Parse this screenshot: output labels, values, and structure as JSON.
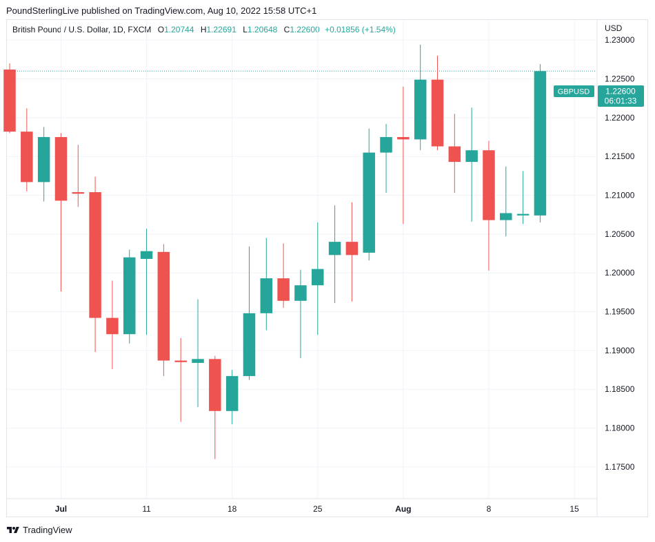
{
  "header": {
    "published_line": "PoundSterlingLive published on TradingView.com, Aug 10, 2022 15:58 UTC+1"
  },
  "legend": {
    "symbol": "British Pound / U.S. Dollar, 1D, FXCM",
    "o_label": "O",
    "o_value": "1.20744",
    "h_label": "H",
    "h_value": "1.22691",
    "l_label": "L",
    "l_value": "1.20648",
    "c_label": "C",
    "c_value": "1.22600",
    "change": "+0.01856 (+1.54%)",
    "currency": "USD"
  },
  "price_tag": {
    "symbol": "GBPUSD",
    "price": "1.22600",
    "countdown": "06:01:33"
  },
  "footer": {
    "brand": "TradingView",
    "logo_icon": "tradingview-logo-icon"
  },
  "colors": {
    "up": "#26a69a",
    "down": "#ef5350",
    "grid": "#f0f3fa",
    "axis_text": "#131722"
  },
  "chart_data": {
    "type": "candlestick",
    "symbol": "GBPUSD",
    "interval": "1D",
    "ylim": [
      1.171,
      1.2325
    ],
    "y_ticks": [
      "1.17500",
      "1.18000",
      "1.18500",
      "1.19000",
      "1.19500",
      "1.20000",
      "1.20500",
      "1.21000",
      "1.21500",
      "1.22000",
      "1.22500",
      "1.23000"
    ],
    "x_ticks": [
      {
        "label": "Jul",
        "index": 3
      },
      {
        "label": "11",
        "index": 8
      },
      {
        "label": "18",
        "index": 13
      },
      {
        "label": "25",
        "index": 18
      },
      {
        "label": "Aug",
        "index": 23
      },
      {
        "label": "8",
        "index": 28
      },
      {
        "label": "15",
        "index": 33
      }
    ],
    "last_price": 1.226,
    "candles": [
      {
        "o": 1.2262,
        "h": 1.227,
        "l": 1.218,
        "c": 1.2182
      },
      {
        "o": 1.2182,
        "h": 1.2212,
        "l": 1.2105,
        "c": 1.2117
      },
      {
        "o": 1.2117,
        "h": 1.2188,
        "l": 1.2092,
        "c": 1.2175
      },
      {
        "o": 1.2175,
        "h": 1.218,
        "l": 1.1976,
        "c": 1.2093
      },
      {
        "o": 1.2104,
        "h": 1.2165,
        "l": 1.2085,
        "c": 1.2102
      },
      {
        "o": 1.2104,
        "h": 1.2124,
        "l": 1.1898,
        "c": 1.1942
      },
      {
        "o": 1.1942,
        "h": 1.199,
        "l": 1.1876,
        "c": 1.1921
      },
      {
        "o": 1.1921,
        "h": 1.203,
        "l": 1.1909,
        "c": 1.202
      },
      {
        "o": 1.2018,
        "h": 1.2057,
        "l": 1.192,
        "c": 1.2028
      },
      {
        "o": 1.2027,
        "h": 1.2037,
        "l": 1.1867,
        "c": 1.1887
      },
      {
        "o": 1.1887,
        "h": 1.1916,
        "l": 1.1808,
        "c": 1.1885
      },
      {
        "o": 1.1884,
        "h": 1.1966,
        "l": 1.1827,
        "c": 1.1889
      },
      {
        "o": 1.1889,
        "h": 1.1893,
        "l": 1.176,
        "c": 1.1822
      },
      {
        "o": 1.1822,
        "h": 1.1875,
        "l": 1.1805,
        "c": 1.1867
      },
      {
        "o": 1.1867,
        "h": 1.2034,
        "l": 1.1862,
        "c": 1.1948
      },
      {
        "o": 1.1948,
        "h": 1.2045,
        "l": 1.1926,
        "c": 1.1993
      },
      {
        "o": 1.1993,
        "h": 1.2038,
        "l": 1.1955,
        "c": 1.1964
      },
      {
        "o": 1.1964,
        "h": 1.2004,
        "l": 1.189,
        "c": 1.1984
      },
      {
        "o": 1.1984,
        "h": 1.2065,
        "l": 1.192,
        "c": 1.2005
      },
      {
        "o": 1.2023,
        "h": 1.2087,
        "l": 1.1961,
        "c": 1.204
      },
      {
        "o": 1.204,
        "h": 1.2091,
        "l": 1.1963,
        "c": 1.2023
      },
      {
        "o": 1.2026,
        "h": 1.2186,
        "l": 1.2016,
        "c": 1.2155
      },
      {
        "o": 1.2155,
        "h": 1.2192,
        "l": 1.2103,
        "c": 1.2175
      },
      {
        "o": 1.2175,
        "h": 1.224,
        "l": 1.2063,
        "c": 1.2172
      },
      {
        "o": 1.2172,
        "h": 1.2294,
        "l": 1.2158,
        "c": 1.2249
      },
      {
        "o": 1.2249,
        "h": 1.228,
        "l": 1.2158,
        "c": 1.2163
      },
      {
        "o": 1.2163,
        "h": 1.2205,
        "l": 1.2103,
        "c": 1.2143
      },
      {
        "o": 1.2143,
        "h": 1.2213,
        "l": 1.2066,
        "c": 1.2158
      },
      {
        "o": 1.2158,
        "h": 1.217,
        "l": 1.2003,
        "c": 1.2068
      },
      {
        "o": 1.2068,
        "h": 1.2137,
        "l": 1.2047,
        "c": 1.2077
      },
      {
        "o": 1.2074,
        "h": 1.2131,
        "l": 1.2063,
        "c": 1.2076
      },
      {
        "o": 1.2074,
        "h": 1.2269,
        "l": 1.2065,
        "c": 1.226
      }
    ]
  }
}
